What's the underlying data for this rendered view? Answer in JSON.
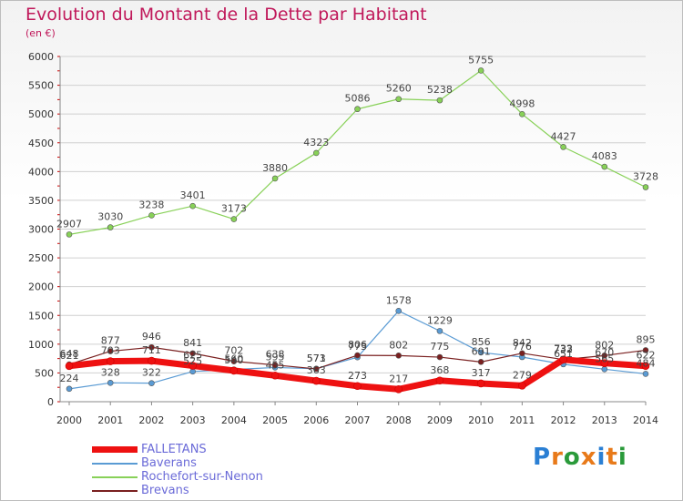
{
  "title": "Evolution du Montant de la Dette par Habitant",
  "subtitle": "(en €)",
  "logo": "Proxiti",
  "colors": {
    "title": "#c0185a",
    "legend_text": "#6b6bd8",
    "axis_text": "#333333",
    "grid": "#d0d0d0",
    "tick_marks": "#cc0000"
  },
  "chart_data": {
    "type": "line",
    "x": [
      "2000",
      "2001",
      "2002",
      "2003",
      "2004",
      "2005",
      "2006",
      "2007",
      "2008",
      "2009",
      "2010",
      "2011",
      "2012",
      "2013",
      "2014"
    ],
    "ylim": [
      0,
      6000
    ],
    "yticks": [
      0,
      500,
      1000,
      1500,
      2000,
      2500,
      3000,
      3500,
      4000,
      4500,
      5000,
      5500,
      6000
    ],
    "grid": "horizontal",
    "legend_position": "bottom-left",
    "series": [
      {
        "name": "FALLETANS",
        "color": "#ee1111",
        "width": 7,
        "values": [
          621,
          703,
          711,
          625,
          540,
          455,
          363,
          273,
          217,
          368,
          317,
          279,
          732,
          670,
          622
        ]
      },
      {
        "name": "Baverans",
        "color": "#5a9bd4",
        "width": 1.2,
        "values": [
          224,
          328,
          322,
          525,
          560,
          595,
          573,
          773,
          1578,
          1229,
          856,
          776,
          651,
          565,
          484
        ]
      },
      {
        "name": "Rochefort-sur-Nenon",
        "color": "#88d158",
        "width": 1.2,
        "values": [
          2907,
          3030,
          3238,
          3401,
          3173,
          3880,
          4323,
          5086,
          5260,
          5238,
          5755,
          4998,
          4427,
          4083,
          3728
        ]
      },
      {
        "name": "Brevans",
        "color": "#7a2020",
        "width": 1.2,
        "values": [
          648,
          877,
          946,
          841,
          702,
          638,
          571,
          806,
          802,
          775,
          691,
          842,
          733,
          802,
          895
        ]
      }
    ],
    "labels": {
      "FALLETANS": [
        "621",
        "703",
        "711",
        "625",
        "540",
        "455",
        "363",
        "273",
        "217",
        "368",
        "317",
        "279",
        "732",
        "670",
        "622"
      ],
      "Baverans": [
        "224",
        "328",
        "322",
        "525",
        "560",
        "595",
        "573",
        "773",
        "1578",
        "1229",
        "856",
        "776",
        "651",
        "565",
        "484"
      ],
      "Rochefort-sur-Nenon": [
        "2907",
        "3030",
        "3238",
        "3401",
        "3173",
        "3880",
        "4323",
        "5086",
        "5260",
        "5238",
        "5755",
        "4998",
        "4427",
        "4083",
        "3728"
      ],
      "Brevans": [
        "648",
        "877",
        "946",
        "841",
        "702",
        "638",
        "571",
        "806",
        "802",
        "775",
        "691",
        "842",
        "733",
        "802",
        "895"
      ]
    }
  }
}
